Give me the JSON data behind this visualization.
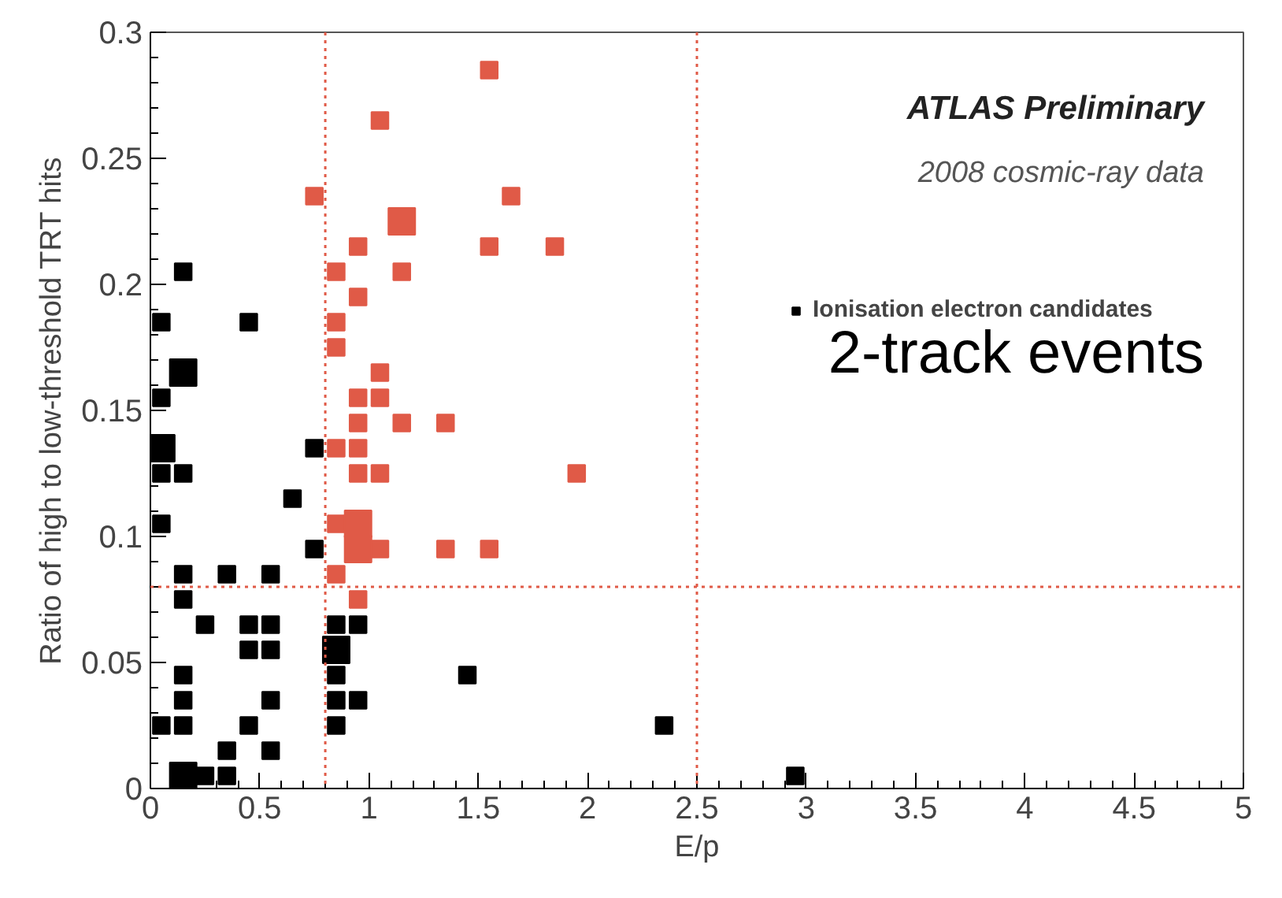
{
  "chart_data": {
    "type": "bubble",
    "xlabel": "E/p",
    "ylabel": "Ratio of high to low-threshold TRT hits",
    "xlim": [
      0,
      5
    ],
    "ylim": [
      0,
      0.3
    ],
    "xticks": [
      0,
      0.5,
      1,
      1.5,
      2,
      2.5,
      3,
      3.5,
      4,
      4.5,
      5
    ],
    "yticks": [
      0,
      0.05,
      0.1,
      0.15,
      0.2,
      0.25,
      0.3
    ],
    "marker": "square",
    "grid": false,
    "legend": "top right",
    "series": [
      {
        "name": "Ionisation electron candidates",
        "color": "#000000",
        "x": [
          0.15,
          0.05,
          0.45,
          0.15,
          0.05,
          0.05,
          0.75,
          0.05,
          0.15,
          0.65,
          0.05,
          0.75,
          0.15,
          0.35,
          0.55,
          0.15,
          0.25,
          0.45,
          0.55,
          0.85,
          0.95,
          0.45,
          0.55,
          0.85,
          0.15,
          0.85,
          1.45,
          0.15,
          0.55,
          0.85,
          0.95,
          0.05,
          0.15,
          0.45,
          0.85,
          0.35,
          0.55,
          0.15,
          0.25,
          0.35,
          2.35,
          2.95
        ],
        "values": [
          0.205,
          0.185,
          0.185,
          0.165,
          0.155,
          0.135,
          0.135,
          0.125,
          0.125,
          0.115,
          0.105,
          0.095,
          0.085,
          0.085,
          0.085,
          0.075,
          0.065,
          0.065,
          0.065,
          0.065,
          0.065,
          0.055,
          0.055,
          0.055,
          0.045,
          0.045,
          0.045,
          0.035,
          0.035,
          0.035,
          0.035,
          0.025,
          0.025,
          0.025,
          0.025,
          0.015,
          0.015,
          0.005,
          0.005,
          0.005,
          0.025,
          0.005
        ],
        "sizes": [
          0.4,
          0.4,
          0.4,
          1,
          0.4,
          1,
          0.4,
          0.4,
          0.4,
          0.4,
          0.4,
          0.4,
          0.4,
          0.4,
          0.4,
          0.4,
          0.4,
          0.4,
          0.4,
          0.4,
          0.4,
          0.4,
          0.4,
          1,
          0.4,
          0.4,
          0.4,
          0.4,
          0.4,
          0.4,
          0.4,
          0.4,
          0.4,
          0.4,
          0.4,
          0.4,
          0.4,
          1,
          0.4,
          0.4,
          0.4,
          0.4
        ]
      },
      {
        "color": "#e05a47",
        "x": [
          1.55,
          1.05,
          0.75,
          1.65,
          1.15,
          0.95,
          1.55,
          1.85,
          0.85,
          1.15,
          0.95,
          0.85,
          0.85,
          1.05,
          0.95,
          1.05,
          0.95,
          1.15,
          1.35,
          0.85,
          0.95,
          0.95,
          1.05,
          1.95,
          0.85,
          0.95,
          0.95,
          1.05,
          1.35,
          1.55,
          0.85,
          0.95
        ],
        "values": [
          0.285,
          0.265,
          0.235,
          0.235,
          0.225,
          0.215,
          0.215,
          0.215,
          0.205,
          0.205,
          0.195,
          0.185,
          0.175,
          0.165,
          0.155,
          0.155,
          0.145,
          0.145,
          0.145,
          0.135,
          0.135,
          0.125,
          0.125,
          0.125,
          0.105,
          0.105,
          0.095,
          0.095,
          0.095,
          0.095,
          0.085,
          0.075
        ],
        "sizes": [
          0.4,
          0.4,
          0.4,
          0.4,
          1,
          0.4,
          0.4,
          0.4,
          0.4,
          0.4,
          0.4,
          0.4,
          0.4,
          0.4,
          0.4,
          0.4,
          0.4,
          0.4,
          0.4,
          0.4,
          0.4,
          0.4,
          0.4,
          0.4,
          0.4,
          1,
          1,
          0.4,
          0.4,
          0.4,
          0.4,
          0.4
        ]
      }
    ],
    "ref_lines": [
      {
        "axis": "x",
        "value": 0.8,
        "color": "#e05a47",
        "line_style": "dotted"
      },
      {
        "axis": "x",
        "value": 2.5,
        "color": "#e05a47",
        "line_style": "dotted"
      },
      {
        "axis": "y",
        "value": 0.08,
        "color": "#e05a47",
        "line_style": "dotted"
      }
    ],
    "annotations": [
      "ATLAS Preliminary",
      "2008 cosmic-ray data",
      "2-track events"
    ]
  }
}
